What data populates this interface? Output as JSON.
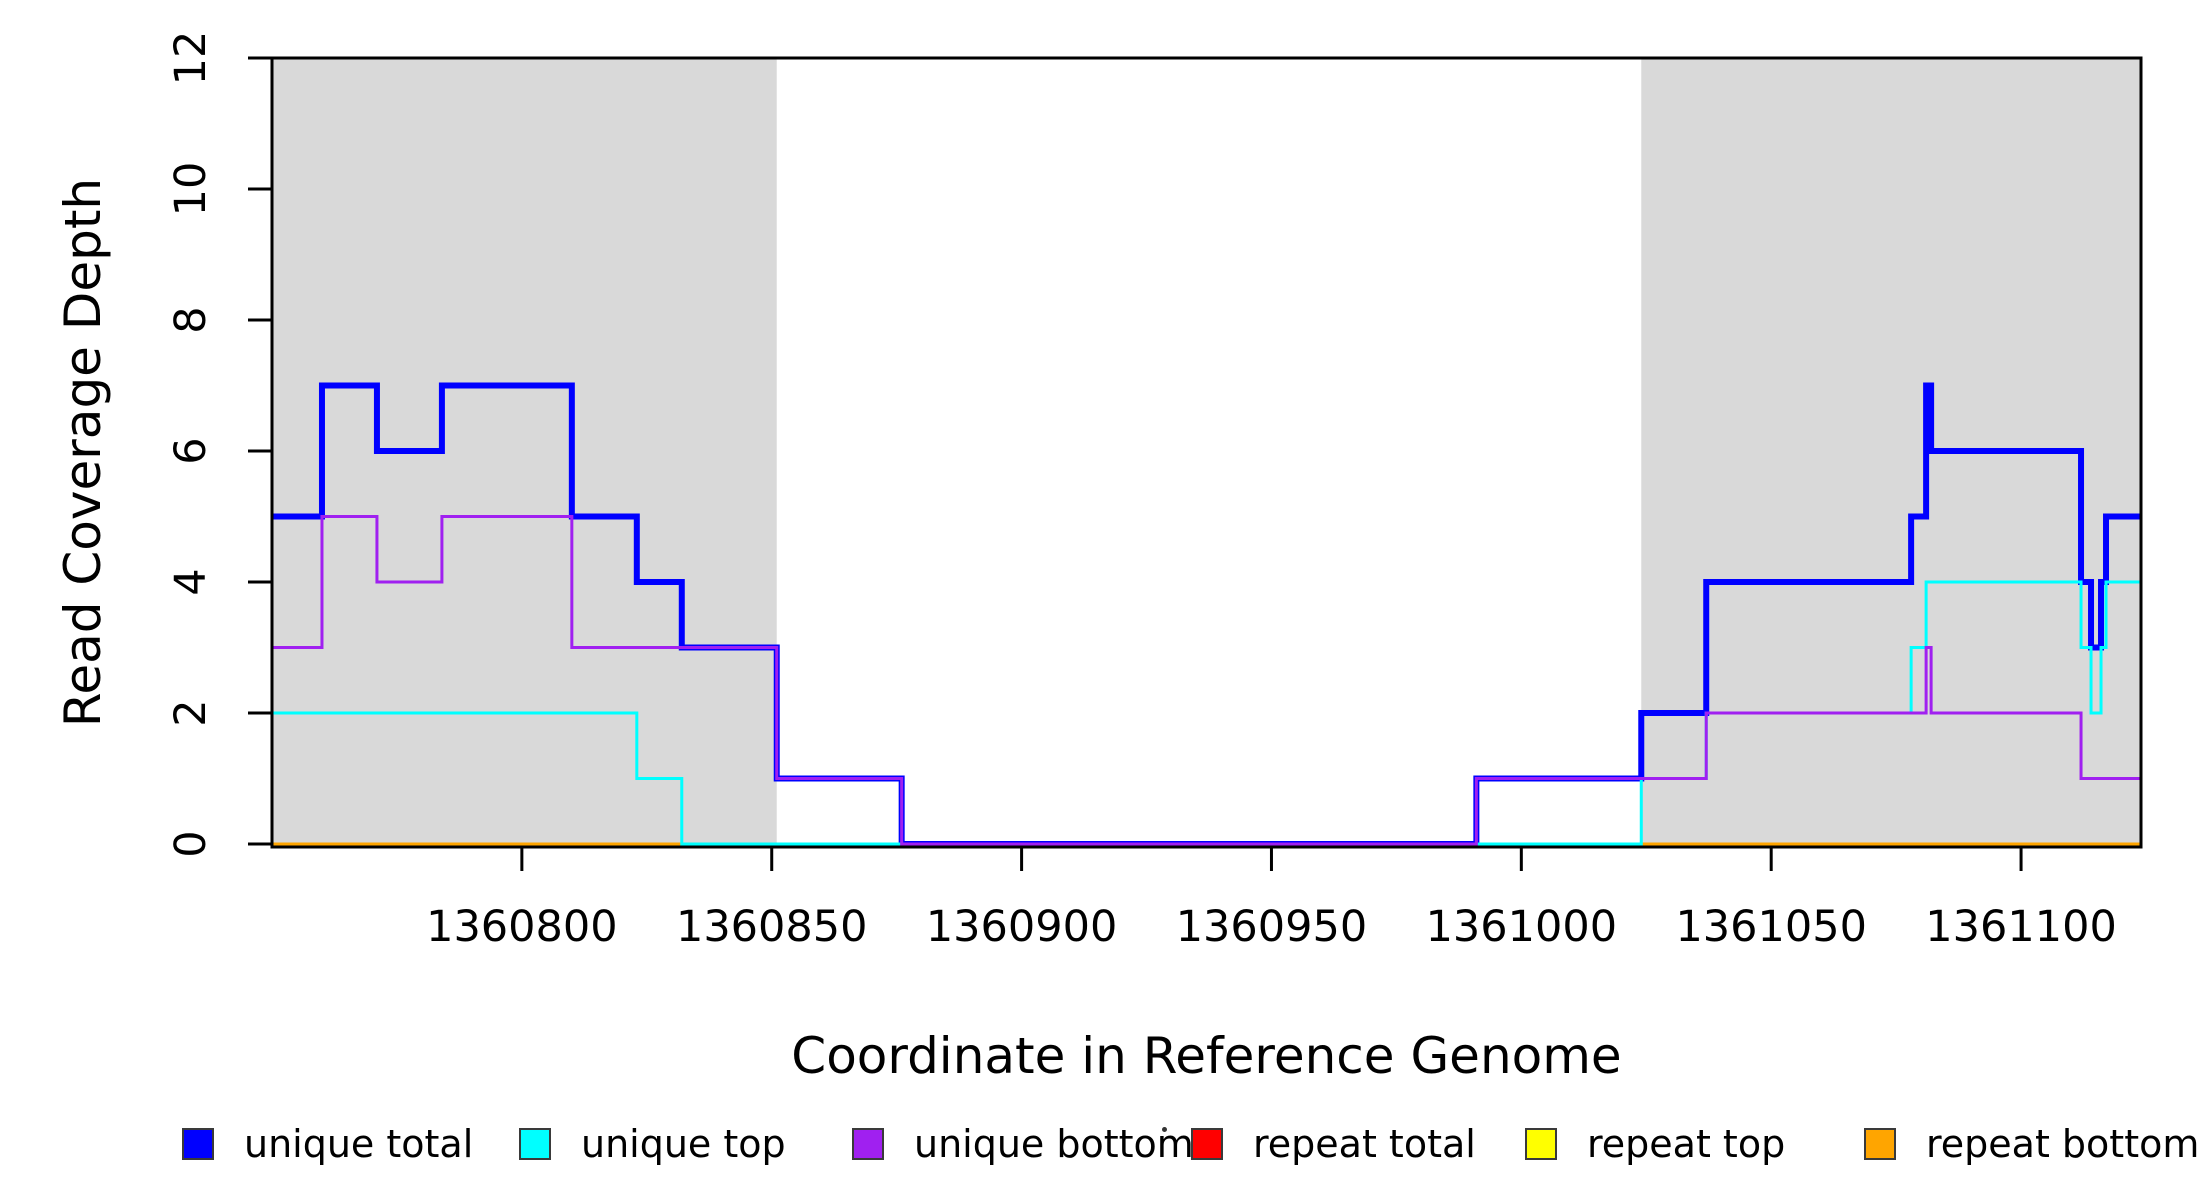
{
  "chart_data": {
    "type": "line",
    "subtype": "step-coverage",
    "title": "",
    "xlabel": "Coordinate in Reference Genome",
    "ylabel": "Read Coverage Depth",
    "xlim": [
      1360750,
      1361124
    ],
    "ylim": [
      0,
      12
    ],
    "x_ticks": [
      1360800,
      1360850,
      1360900,
      1360950,
      1361000,
      1361050,
      1361100
    ],
    "y_ticks": [
      0,
      2,
      4,
      6,
      8,
      10,
      12
    ],
    "grid": "off",
    "legend_position": "bottom",
    "background_color": "#ffffff",
    "shaded_regions": [
      {
        "name": "repeat-region-left",
        "x0": 1360750,
        "x1": 1360851,
        "color": "#d9d9d9"
      },
      {
        "name": "repeat-region-right",
        "x0": 1361024,
        "x1": 1361124,
        "color": "#d9d9d9"
      }
    ],
    "series": [
      {
        "name": "unique total",
        "color": "#0000ff",
        "line_width": 6,
        "draw_order": 4,
        "step_points": [
          [
            1360750,
            5
          ],
          [
            1360760,
            7
          ],
          [
            1360771,
            6
          ],
          [
            1360784,
            7
          ],
          [
            1360810,
            5
          ],
          [
            1360823,
            4
          ],
          [
            1360832,
            3
          ],
          [
            1360851,
            1
          ],
          [
            1360876,
            0
          ],
          [
            1360991,
            1
          ],
          [
            1361024,
            2
          ],
          [
            1361037,
            4
          ],
          [
            1361078,
            5
          ],
          [
            1361081,
            7
          ],
          [
            1361082,
            6
          ],
          [
            1361112,
            4
          ],
          [
            1361114,
            3
          ],
          [
            1361116,
            4
          ],
          [
            1361117,
            5
          ]
        ]
      },
      {
        "name": "unique top",
        "color": "#00ffff",
        "line_width": 3,
        "draw_order": 5,
        "step_points": [
          [
            1360750,
            2
          ],
          [
            1360823,
            1
          ],
          [
            1360832,
            0
          ],
          [
            1361024,
            1
          ],
          [
            1361037,
            2
          ],
          [
            1361078,
            3
          ],
          [
            1361081,
            4
          ],
          [
            1361112,
            3
          ],
          [
            1361114,
            2
          ],
          [
            1361116,
            3
          ],
          [
            1361117,
            4
          ]
        ]
      },
      {
        "name": "unique bottom",
        "color": "#a020f0",
        "line_width": 3,
        "draw_order": 6,
        "step_points": [
          [
            1360750,
            3
          ],
          [
            1360760,
            5
          ],
          [
            1360771,
            4
          ],
          [
            1360784,
            5
          ],
          [
            1360810,
            3
          ],
          [
            1360851,
            1
          ],
          [
            1360876,
            0
          ],
          [
            1360991,
            1
          ],
          [
            1361037,
            2
          ],
          [
            1361081,
            3
          ],
          [
            1361082,
            2
          ],
          [
            1361112,
            1
          ]
        ]
      },
      {
        "name": "repeat total",
        "color": "#ff0000",
        "line_width": 3,
        "draw_order": 1,
        "step_points": [
          [
            1360750,
            0
          ]
        ]
      },
      {
        "name": "repeat top",
        "color": "#ffff00",
        "line_width": 3,
        "draw_order": 2,
        "step_points": [
          [
            1360750,
            0
          ]
        ]
      },
      {
        "name": "repeat bottom",
        "color": "#ffa500",
        "line_width": 3,
        "draw_order": 3,
        "step_points": [
          [
            1360750,
            0
          ]
        ]
      }
    ]
  }
}
